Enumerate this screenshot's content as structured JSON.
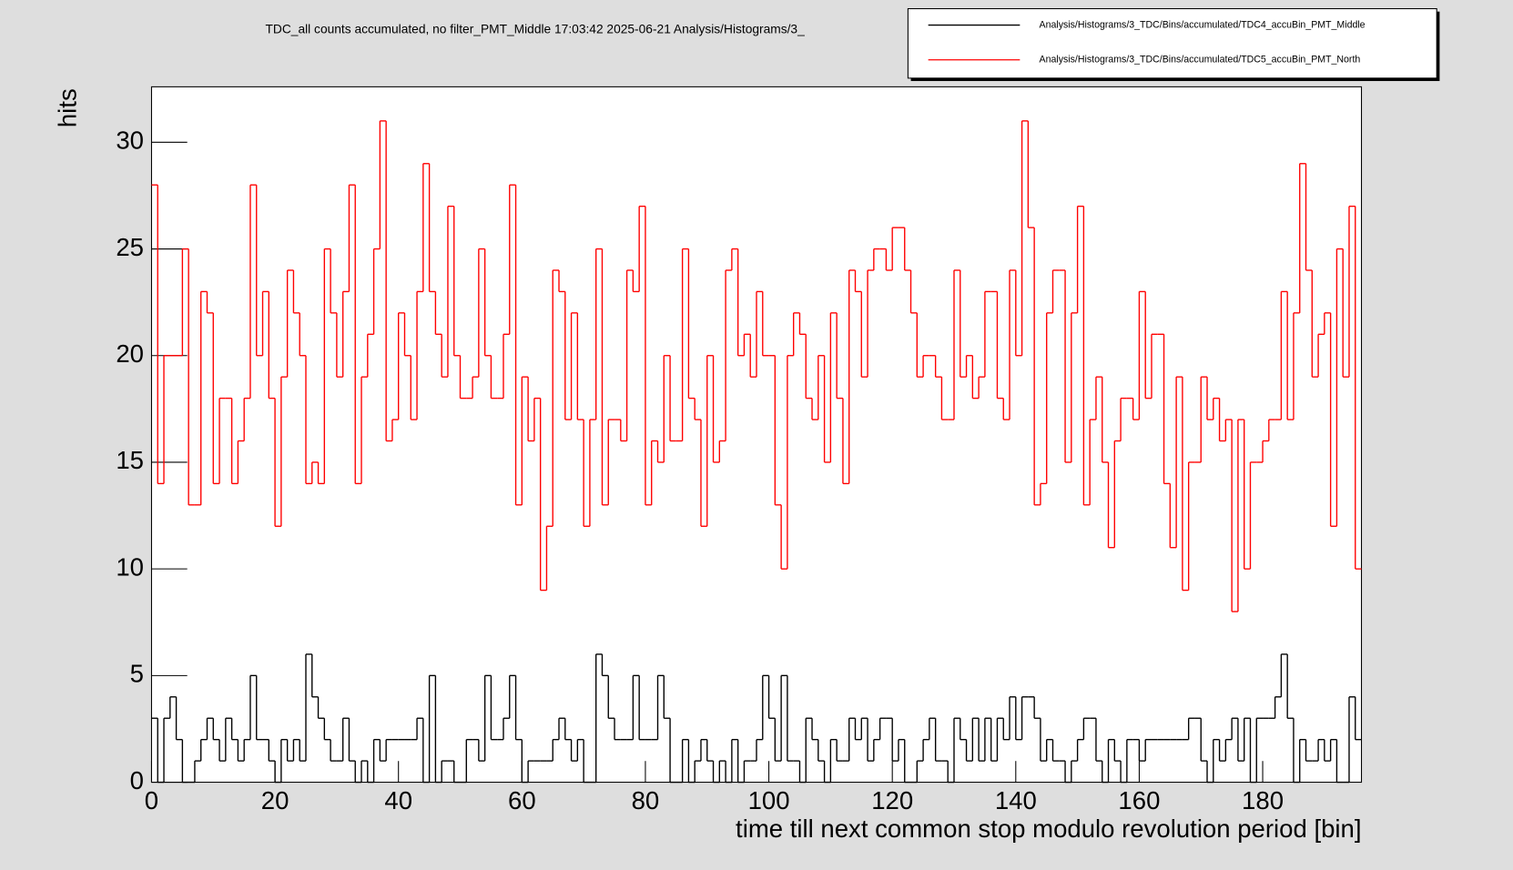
{
  "chart_data": {
    "type": "histogram",
    "title": "TDC_all counts accumulated, no filter_PMT_Middle  17:03:42  2025-06-21  Analysis/Histograms/3_",
    "x_label": "time till next common stop modulo revolution period [bin]",
    "y_label": "hits",
    "xlim": [
      0,
      196
    ],
    "ylim": [
      0,
      32.6
    ],
    "xticks": [
      0,
      20,
      40,
      60,
      80,
      100,
      120,
      140,
      160,
      180
    ],
    "yticks": [
      0,
      5,
      10,
      15,
      20,
      25,
      30
    ],
    "legend": "top-right",
    "bins": [
      0,
      1,
      2,
      3,
      4,
      5,
      6,
      7,
      8,
      9,
      10,
      11,
      12,
      13,
      14,
      15,
      16,
      17,
      18,
      19,
      20,
      21,
      22,
      23,
      24,
      25,
      26,
      27,
      28,
      29,
      30,
      31,
      32,
      33,
      34,
      35,
      36,
      37,
      38,
      39,
      40,
      41,
      42,
      43,
      44,
      45,
      46,
      47,
      48,
      49,
      50,
      51,
      52,
      53,
      54,
      55,
      56,
      57,
      58,
      59,
      60,
      61,
      62,
      63,
      64,
      65,
      66,
      67,
      68,
      69,
      70,
      71,
      72,
      73,
      74,
      75,
      76,
      77,
      78,
      79,
      80,
      81,
      82,
      83,
      84,
      85,
      86,
      87,
      88,
      89,
      90,
      91,
      92,
      93,
      94,
      95,
      96,
      97,
      98,
      99,
      100,
      101,
      102,
      103,
      104,
      105,
      106,
      107,
      108,
      109,
      110,
      111,
      112,
      113,
      114,
      115,
      116,
      117,
      118,
      119,
      120,
      121,
      122,
      123,
      124,
      125,
      126,
      127,
      128,
      129,
      130,
      131,
      132,
      133,
      134,
      135,
      136,
      137,
      138,
      139,
      140,
      141,
      142,
      143,
      144,
      145,
      146,
      147,
      148,
      149,
      150,
      151,
      152,
      153,
      154,
      155,
      156,
      157,
      158,
      159,
      160,
      161,
      162,
      163,
      164,
      165,
      166,
      167,
      168,
      169,
      170,
      171,
      172,
      173,
      174,
      175,
      176,
      177,
      178,
      179,
      180,
      181,
      182,
      183,
      184,
      185,
      186,
      187,
      188,
      189,
      190,
      191,
      192,
      193,
      194,
      195,
      196
    ],
    "series": [
      {
        "name": "Analysis/Histograms/3_TDC/Bins/accumulated/TDC4_accuBin_PMT_Middle",
        "color": "#000000",
        "values": [
          3,
          0,
          3,
          4,
          2,
          0,
          0,
          1,
          2,
          3,
          2,
          1,
          3,
          2,
          1,
          2,
          5,
          2,
          2,
          1,
          0,
          2,
          1,
          2,
          1,
          6,
          4,
          3,
          2,
          1,
          1,
          3,
          1,
          0,
          1,
          0,
          2,
          1,
          2,
          2,
          2,
          2,
          2,
          3,
          0,
          5,
          0,
          1,
          1,
          0,
          0,
          2,
          2,
          1,
          5,
          2,
          2,
          3,
          5,
          2,
          0,
          1,
          1,
          1,
          1,
          2,
          3,
          2,
          1,
          2,
          0,
          0,
          6,
          5,
          3,
          2,
          2,
          2,
          5,
          2,
          2,
          2,
          5,
          3,
          0,
          0,
          2,
          0,
          1,
          2,
          1,
          0,
          1,
          0,
          2,
          0,
          1,
          1,
          2,
          5,
          3,
          1,
          5,
          1,
          1,
          0,
          3,
          2,
          1,
          0,
          2,
          1,
          1,
          3,
          2,
          3,
          1,
          2,
          3,
          3,
          1,
          2,
          0,
          0,
          1,
          2,
          3,
          1,
          1,
          0,
          3,
          2,
          1,
          3,
          1,
          3,
          1,
          3,
          2,
          4,
          2,
          4,
          4,
          3,
          1,
          2,
          1,
          1,
          0,
          1,
          2,
          3,
          3,
          1,
          0,
          2,
          1,
          0,
          2,
          2,
          1,
          2,
          2,
          2,
          2,
          2,
          2,
          2,
          3,
          3,
          1,
          0,
          2,
          1,
          2,
          3,
          1,
          3,
          0,
          3,
          3,
          3,
          4,
          6,
          3,
          0,
          2,
          1,
          1,
          2,
          1,
          2,
          0,
          0,
          4,
          2
        ]
      },
      {
        "name": "Analysis/Histograms/3_TDC/Bins/accumulated/TDC5_accuBin_PMT_North",
        "color": "#ff0000",
        "values": [
          28,
          14,
          20,
          20,
          20,
          25,
          13,
          13,
          23,
          22,
          14,
          18,
          18,
          14,
          16,
          18,
          28,
          20,
          23,
          18,
          12,
          19,
          24,
          22,
          20,
          14,
          15,
          14,
          25,
          22,
          19,
          23,
          28,
          14,
          19,
          21,
          25,
          31,
          16,
          17,
          22,
          20,
          17,
          23,
          29,
          23,
          21,
          19,
          27,
          20,
          18,
          18,
          19,
          25,
          20,
          18,
          18,
          21,
          28,
          13,
          19,
          16,
          18,
          9,
          12,
          24,
          23,
          17,
          22,
          17,
          12,
          17,
          25,
          13,
          17,
          17,
          16,
          24,
          23,
          27,
          13,
          16,
          15,
          20,
          16,
          16,
          25,
          18,
          17,
          12,
          20,
          15,
          16,
          24,
          25,
          20,
          21,
          19,
          23,
          20,
          20,
          13,
          10,
          20,
          22,
          21,
          18,
          17,
          20,
          15,
          22,
          18,
          14,
          24,
          23,
          19,
          24,
          25,
          25,
          24,
          26,
          26,
          24,
          22,
          19,
          20,
          20,
          19,
          17,
          17,
          24,
          19,
          20,
          18,
          19,
          23,
          23,
          18,
          17,
          24,
          20,
          31,
          26,
          13,
          14,
          22,
          24,
          24,
          15,
          22,
          27,
          13,
          17,
          19,
          15,
          11,
          16,
          18,
          18,
          17,
          23,
          18,
          21,
          21,
          14,
          11,
          19,
          9,
          15,
          15,
          19,
          17,
          18,
          16,
          17,
          8,
          17,
          10,
          15,
          15,
          16,
          17,
          17,
          23,
          17,
          22,
          29,
          24,
          19,
          21,
          22,
          12,
          25,
          19,
          27,
          10
        ]
      }
    ]
  }
}
